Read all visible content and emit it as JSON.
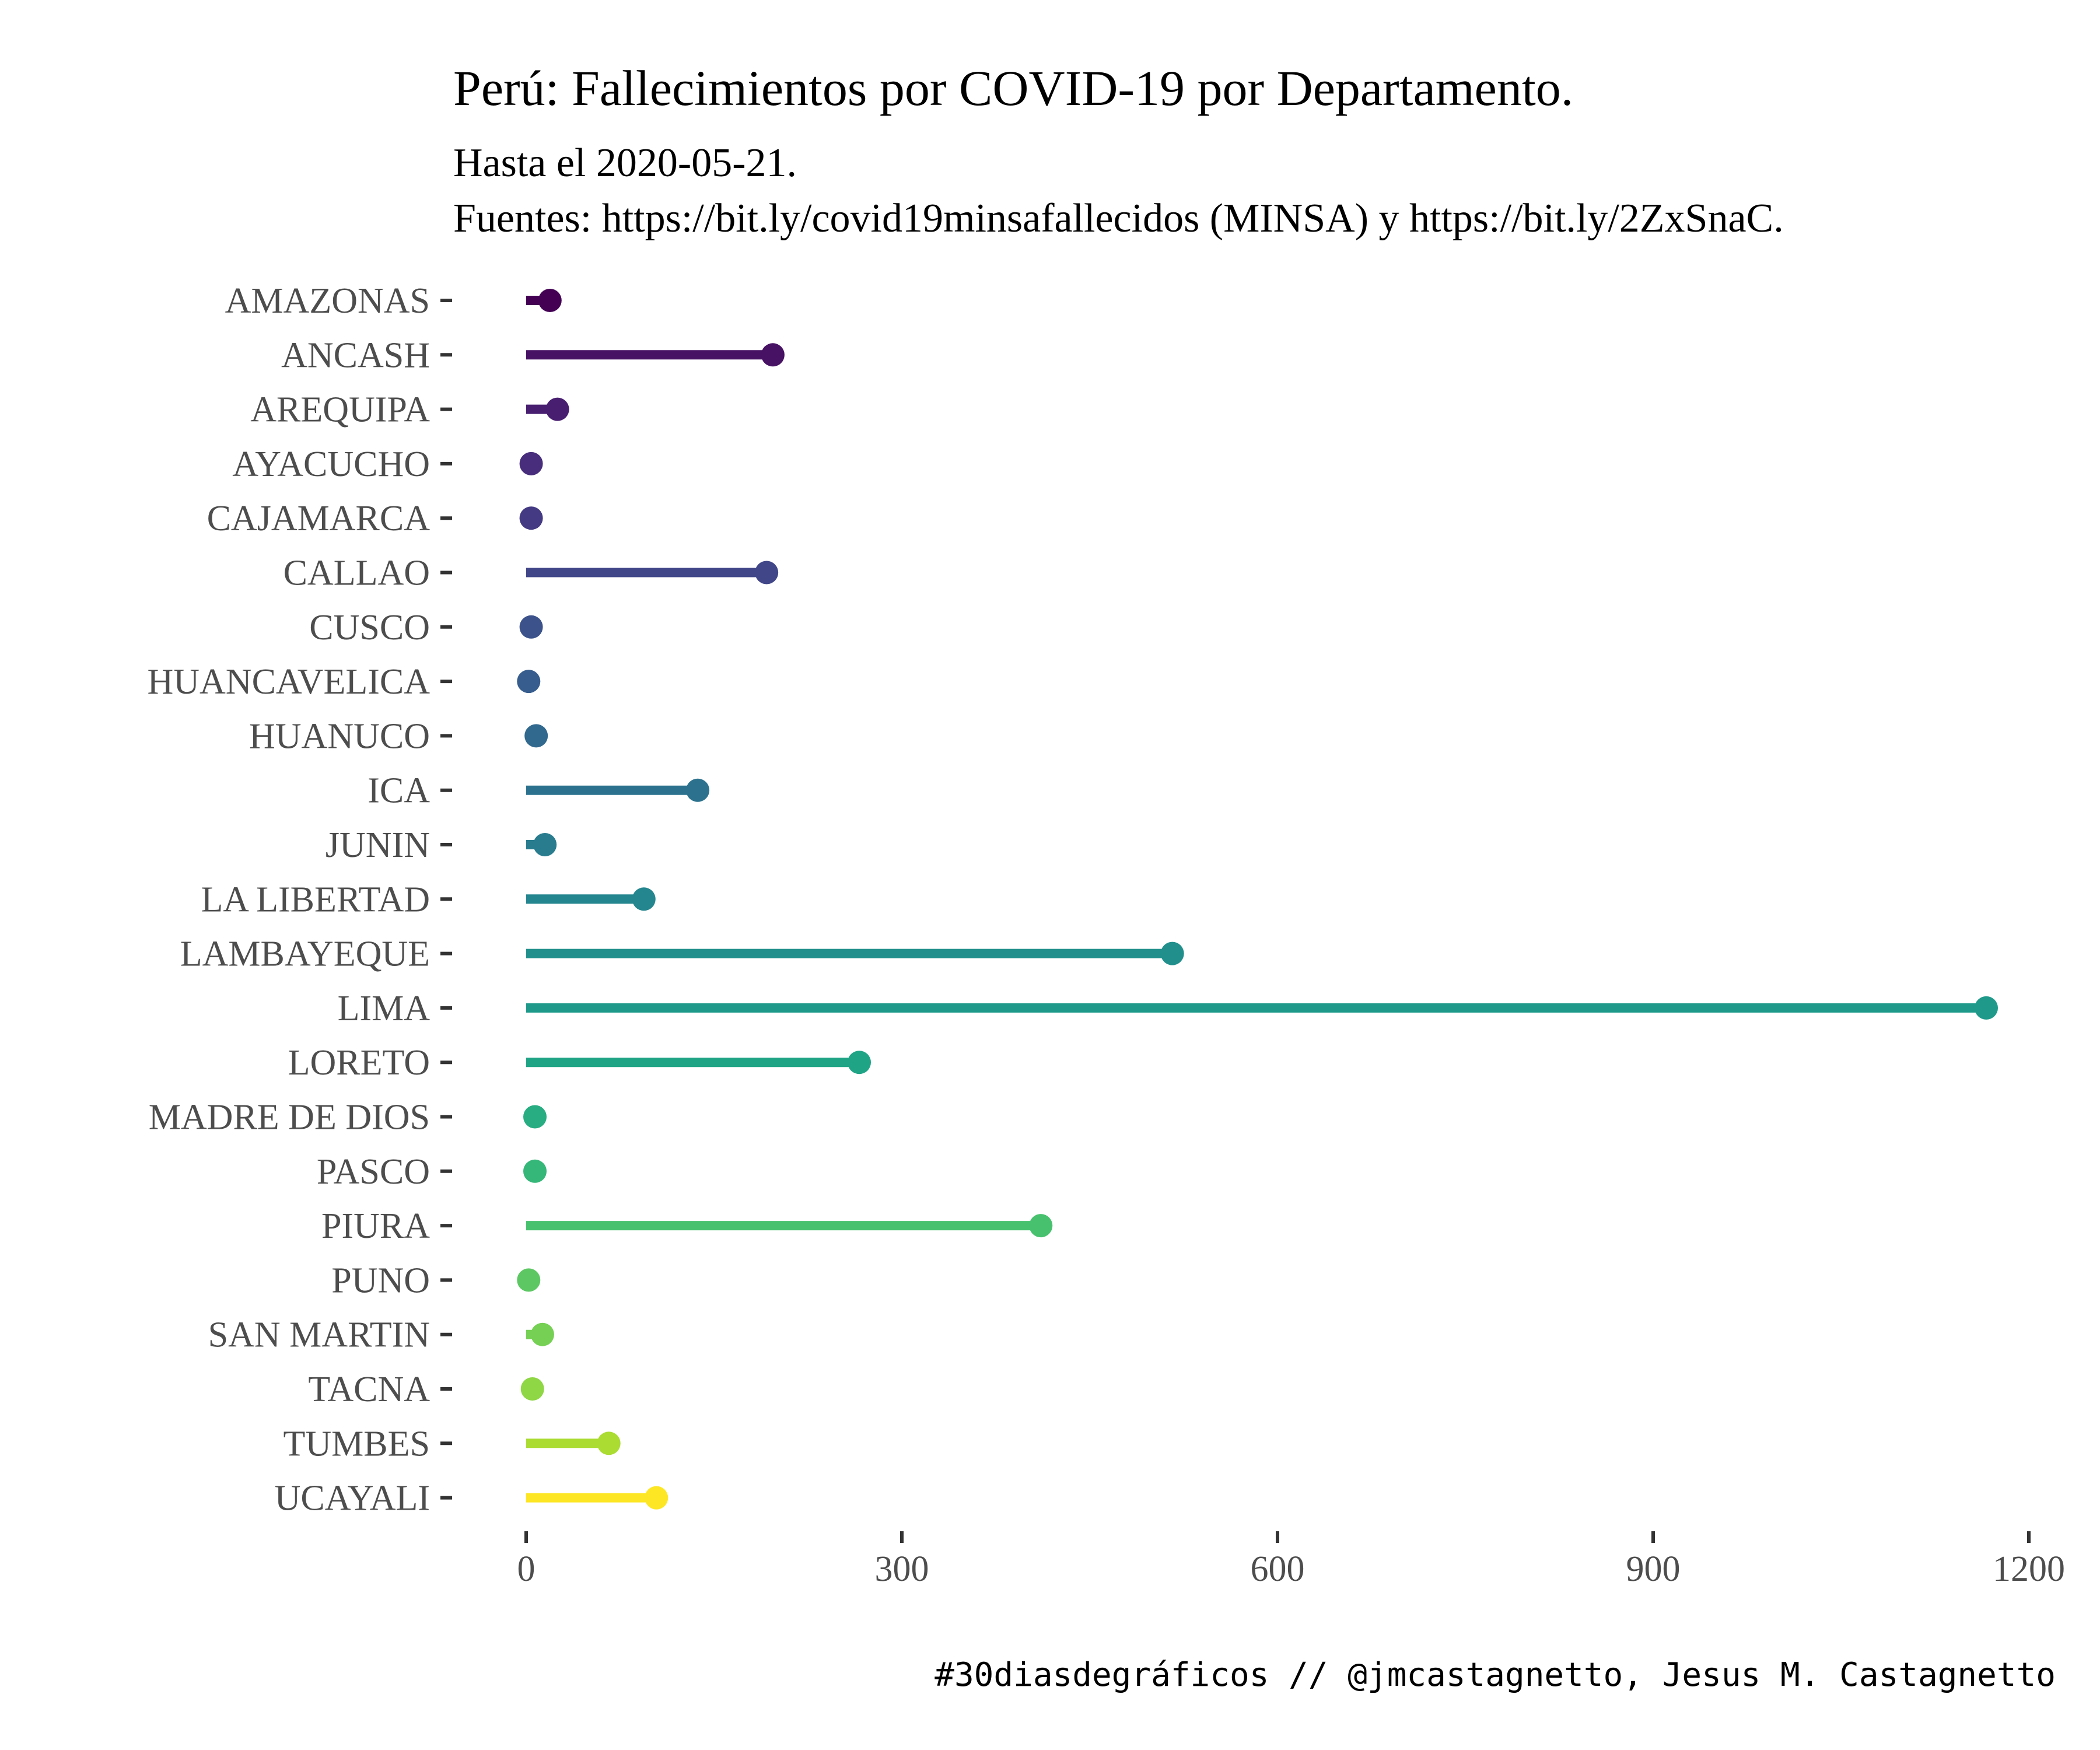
{
  "chart_data": {
    "type": "lollipop",
    "title": "Perú: Fallecimientos por COVID-19 por Departamento.",
    "subtitle_lines": [
      "Hasta el 2020-05-21.",
      "Fuentes: https://bit.ly/covid19minsafallecidos (MINSA) y https://bit.ly/2ZxSnaC."
    ],
    "caption": "#30diasdegráficos // @jmcastagnetto, Jesus M. Castagnetto",
    "xlabel": "",
    "ylabel": "",
    "xlim": [
      0,
      1200
    ],
    "x_ticks": [
      0,
      300,
      600,
      900,
      1200
    ],
    "grid": false,
    "legend": "none",
    "categories": [
      "AMAZONAS",
      "ANCASH",
      "AREQUIPA",
      "AYACUCHO",
      "CAJAMARCA",
      "CALLAO",
      "CUSCO",
      "HUANCAVELICA",
      "HUANUCO",
      "ICA",
      "JUNIN",
      "LA LIBERTAD",
      "LAMBAYEQUE",
      "LIMA",
      "LORETO",
      "MADRE DE DIOS",
      "PASCO",
      "PIURA",
      "PUNO",
      "SAN MARTIN",
      "TACNA",
      "TUMBES",
      "UCAYALI"
    ],
    "values": [
      19,
      197,
      25,
      4,
      4,
      192,
      4,
      2,
      8,
      137,
      15,
      94,
      516,
      1166,
      266,
      7,
      7,
      411,
      2,
      13,
      5,
      66,
      104
    ],
    "colors": [
      "#440154",
      "#471164",
      "#481F70",
      "#472D7B",
      "#443A83",
      "#404688",
      "#3B528B",
      "#365D8D",
      "#31688E",
      "#2C728E",
      "#287C8E",
      "#24868E",
      "#21908C",
      "#1F9A8A",
      "#20A486",
      "#27AD81",
      "#35B779",
      "#47C16E",
      "#5DC863",
      "#75D054",
      "#8FD744",
      "#AADC32",
      "#FDE725"
    ]
  }
}
